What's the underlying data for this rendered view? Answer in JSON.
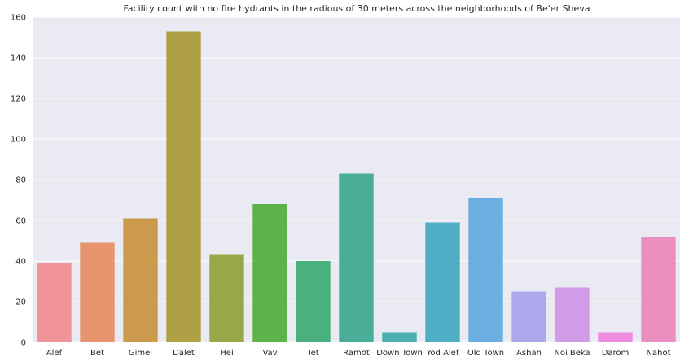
{
  "chart_data": {
    "type": "bar",
    "title": "Facility count with no fire hydrants in the radious of 30 meters across the neighborhoods of Be'er Sheva",
    "xlabel": "",
    "ylabel": "",
    "categories": [
      "Alef",
      "Bet",
      "Gimel",
      "Dalet",
      "Hei",
      "Vav",
      "Tet",
      "Ramot",
      "Down Town",
      "Yod Alef",
      "Old Town",
      "Ashan",
      "Noi Beka",
      "Darom",
      "Nahot"
    ],
    "values": [
      39,
      49,
      61,
      153,
      43,
      68,
      40,
      83,
      5,
      59,
      71,
      25,
      27,
      5,
      52
    ],
    "colors": [
      "#f0949a",
      "#e8956f",
      "#cc9a4c",
      "#b0a045",
      "#96a847",
      "#5db249",
      "#4ab07e",
      "#4aad98",
      "#4aaeae",
      "#4eaec6",
      "#6aaee2",
      "#ada8ec",
      "#d39ae8",
      "#ec8ce0",
      "#e98fc0"
    ],
    "ylim": [
      0,
      160
    ],
    "yticks": [
      0,
      20,
      40,
      60,
      80,
      100,
      120,
      140,
      160
    ],
    "grid": true,
    "background": "#eaeaf2",
    "gridline_color": "#ffffff"
  }
}
